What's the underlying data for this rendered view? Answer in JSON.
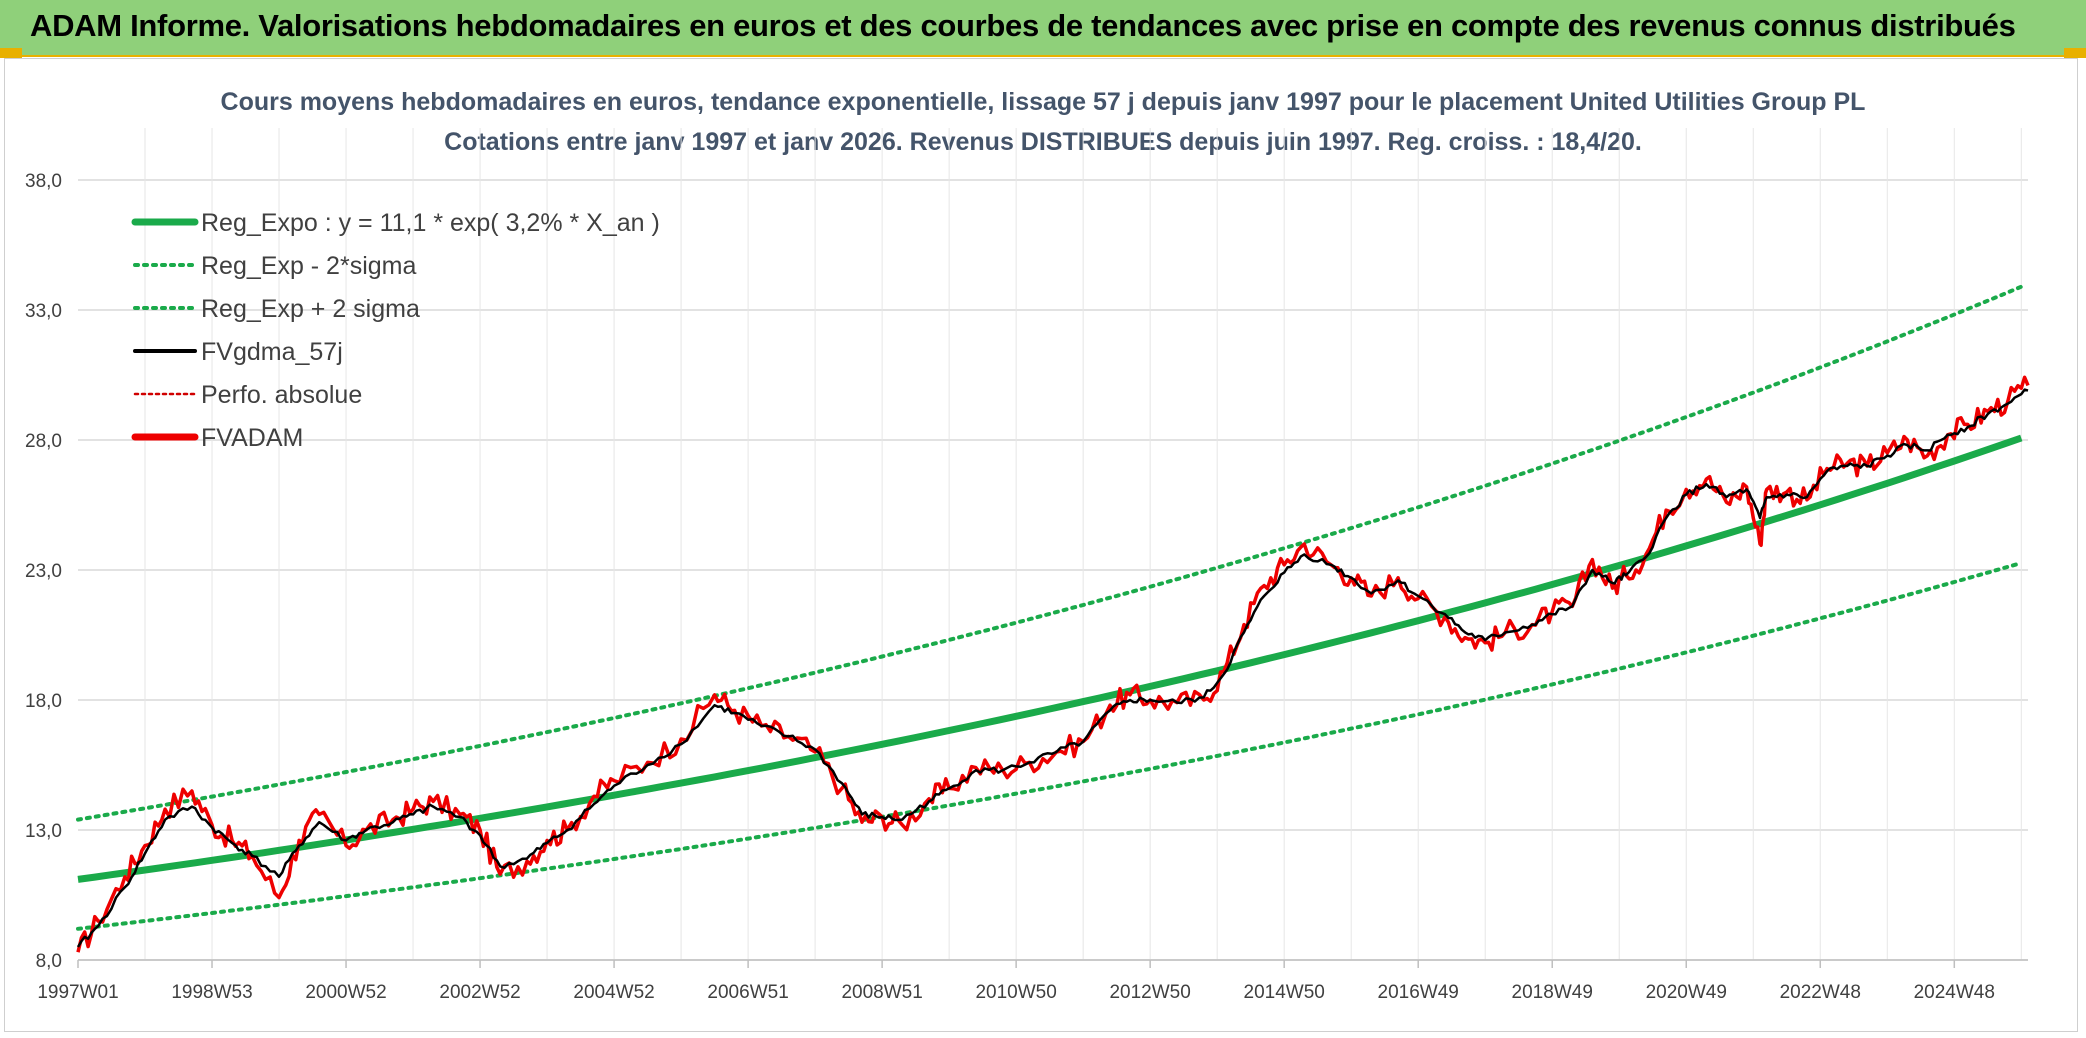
{
  "banner": {
    "title": "ADAM Informe. Valorisations hebdomadaires en euros et des courbes de tendances avec prise en compte des revenus connus distribués",
    "bg_color": "#8fd07a",
    "accent_color": "#e8b000"
  },
  "chart_data": {
    "type": "line",
    "title_line1": "Cours moyens hebdomadaires en euros, tendance exponentielle, lissage 57 j depuis janv 1997 pour le placement United Utilities Group PL",
    "title_line2": "Cotations entre janv 1997 et janv 2026. Revenus DISTRIBUES depuis juin 1997. Reg. croiss. : 18,4/20.",
    "xlabel": "",
    "ylabel": "",
    "xlim": [
      1997.0,
      2026.1
    ],
    "ylim": [
      8.0,
      40.0
    ],
    "y_ticks": [
      8.0,
      13.0,
      18.0,
      23.0,
      28.0,
      33.0,
      38.0
    ],
    "y_tick_labels": [
      "8,0",
      "13,0",
      "18,0",
      "23,0",
      "28,0",
      "33,0",
      "38,0"
    ],
    "x_ticks": [
      1997.0,
      1999.0,
      2001.0,
      2003.0,
      2005.0,
      2007.0,
      2009.0,
      2011.0,
      2013.0,
      2015.0,
      2017.0,
      2019.0,
      2021.0,
      2023.0,
      2025.0
    ],
    "x_tick_labels": [
      "1997W01",
      "1998W53",
      "2000W52",
      "2002W52",
      "2004W52",
      "2006W51",
      "2008W51",
      "2010W50",
      "2012W50",
      "2014W50",
      "2016W49",
      "2018W49",
      "2020W49",
      "2022W48",
      "2024W48"
    ],
    "grid": true,
    "legend_position": "top-left",
    "legend": [
      {
        "label": "Reg_Expo : y = 11,1 * exp( 3,2% *  X_an )",
        "color": "#1aaa4a",
        "style": "solid-thick"
      },
      {
        "label": "Reg_Exp - 2*sigma",
        "color": "#1aaa4a",
        "style": "dotted"
      },
      {
        "label": "Reg_Exp + 2 sigma",
        "color": "#1aaa4a",
        "style": "dotted"
      },
      {
        "label": "FVgdma_57j",
        "color": "#000000",
        "style": "solid"
      },
      {
        "label": "Perfo. absolue",
        "color": "#d00000",
        "style": "dotted-thin"
      },
      {
        "label": "FVADAM",
        "color": "#ee0000",
        "style": "solid-thick"
      }
    ],
    "series": [
      {
        "name": "Reg_Expo",
        "x": [
          1997.0,
          2026.1
        ],
        "formula": "y = 11.1 * exp(0.032 * (x - 1997))",
        "values": [
          11.1,
          28.3
        ]
      },
      {
        "name": "Reg_Exp - 2*sigma",
        "x": [
          1997.0,
          2026.1
        ],
        "formula": "y = 9.2 * exp(0.032 * (x - 1997))",
        "values": [
          9.2,
          23.5
        ]
      },
      {
        "name": "Reg_Exp + 2 sigma",
        "x": [
          1997.0,
          2026.1
        ],
        "formula": "y = 13.4 * exp(0.032 * (x - 1997))",
        "values": [
          13.4,
          34.1
        ]
      },
      {
        "name": "FVADAM",
        "x": [
          1997.0,
          1997.3,
          1997.7,
          1998.0,
          1998.3,
          1998.7,
          1999.0,
          1999.3,
          1999.6,
          2000.0,
          2000.3,
          2000.6,
          2001.0,
          2001.3,
          2001.7,
          2002.0,
          2002.3,
          2002.7,
          2003.0,
          2003.3,
          2003.7,
          2004.0,
          2004.3,
          2004.7,
          2005.0,
          2005.5,
          2006.0,
          2006.5,
          2006.8,
          2007.2,
          2007.6,
          2008.0,
          2008.4,
          2008.7,
          2009.0,
          2009.3,
          2009.7,
          2010.0,
          2010.4,
          2010.8,
          2011.2,
          2011.6,
          2012.0,
          2012.4,
          2012.7,
          2013.0,
          2013.4,
          2013.8,
          2014.1,
          2014.4,
          2014.7,
          2015.0,
          2015.3,
          2015.7,
          2016.0,
          2016.3,
          2016.7,
          2017.0,
          2017.4,
          2017.7,
          2018.0,
          2018.3,
          2018.7,
          2019.0,
          2019.3,
          2019.6,
          2019.9,
          2020.1,
          2020.4,
          2020.7,
          2021.0,
          2021.3,
          2021.6,
          2021.9,
          2022.1,
          2022.2,
          2022.5,
          2022.8,
          2023.1,
          2023.4,
          2023.7,
          2024.0,
          2024.3,
          2024.6,
          2024.9,
          2025.2,
          2025.5,
          2025.8,
          2026.1
        ],
        "values": [
          8.3,
          9.5,
          11.2,
          12.4,
          13.8,
          14.5,
          13.2,
          12.6,
          12.0,
          10.4,
          12.6,
          13.6,
          12.4,
          13.0,
          13.4,
          13.8,
          14.1,
          13.6,
          13.0,
          11.3,
          11.8,
          12.6,
          13.0,
          14.3,
          14.9,
          15.6,
          16.5,
          18.2,
          17.6,
          17.0,
          16.6,
          16.0,
          14.6,
          13.3,
          13.5,
          13.2,
          14.2,
          14.6,
          15.4,
          15.3,
          15.6,
          16.0,
          16.4,
          17.8,
          18.2,
          18.0,
          17.9,
          18.0,
          19.1,
          20.9,
          22.4,
          23.2,
          24.0,
          23.2,
          22.7,
          22.0,
          22.7,
          21.9,
          21.2,
          20.4,
          20.2,
          20.6,
          20.9,
          21.4,
          21.6,
          23.4,
          22.3,
          22.8,
          23.6,
          25.3,
          26.1,
          26.5,
          25.6,
          26.2,
          24.0,
          26.1,
          26.0,
          25.7,
          26.9,
          27.1,
          27.0,
          27.5,
          28.0,
          27.4,
          28.2,
          28.6,
          29.1,
          29.5,
          30.1
        ]
      },
      {
        "name": "FVgdma_57j",
        "x": [
          1997.0,
          1997.3,
          1997.7,
          1998.0,
          1998.3,
          1998.7,
          1999.0,
          1999.3,
          1999.6,
          2000.0,
          2000.3,
          2000.6,
          2001.0,
          2001.3,
          2001.7,
          2002.0,
          2002.3,
          2002.7,
          2003.0,
          2003.3,
          2003.7,
          2004.0,
          2004.3,
          2004.7,
          2005.0,
          2005.5,
          2006.0,
          2006.5,
          2006.8,
          2007.2,
          2007.6,
          2008.0,
          2008.4,
          2008.7,
          2009.0,
          2009.3,
          2009.7,
          2010.0,
          2010.4,
          2010.8,
          2011.2,
          2011.6,
          2012.0,
          2012.4,
          2012.7,
          2013.0,
          2013.4,
          2013.8,
          2014.1,
          2014.4,
          2014.7,
          2015.0,
          2015.3,
          2015.7,
          2016.0,
          2016.3,
          2016.7,
          2017.0,
          2017.4,
          2017.7,
          2018.0,
          2018.3,
          2018.7,
          2019.0,
          2019.3,
          2019.6,
          2019.9,
          2020.1,
          2020.4,
          2020.7,
          2021.0,
          2021.3,
          2021.6,
          2021.9,
          2022.1,
          2022.2,
          2022.5,
          2022.8,
          2023.1,
          2023.4,
          2023.7,
          2024.0,
          2024.3,
          2024.6,
          2024.9,
          2025.2,
          2025.5,
          2025.8,
          2026.1
        ],
        "values": [
          8.5,
          9.3,
          10.8,
          12.1,
          13.4,
          13.9,
          13.1,
          12.5,
          12.0,
          11.2,
          12.4,
          13.3,
          12.6,
          13.0,
          13.3,
          13.6,
          13.9,
          13.5,
          12.8,
          11.6,
          11.9,
          12.5,
          13.0,
          14.0,
          14.7,
          15.5,
          16.3,
          17.8,
          17.5,
          17.0,
          16.6,
          16.1,
          14.8,
          13.6,
          13.5,
          13.4,
          14.1,
          14.6,
          15.3,
          15.3,
          15.6,
          16.0,
          16.4,
          17.6,
          18.0,
          18.0,
          17.9,
          18.1,
          19.0,
          20.6,
          22.0,
          22.9,
          23.6,
          23.2,
          22.7,
          22.1,
          22.6,
          22.0,
          21.3,
          20.6,
          20.3,
          20.6,
          20.9,
          21.3,
          21.6,
          23.0,
          22.5,
          22.8,
          23.5,
          25.0,
          25.9,
          26.3,
          25.8,
          26.1,
          25.0,
          25.8,
          25.9,
          25.8,
          26.8,
          27.0,
          27.0,
          27.4,
          27.8,
          27.6,
          28.2,
          28.5,
          29.0,
          29.4,
          29.9
        ]
      }
    ]
  }
}
